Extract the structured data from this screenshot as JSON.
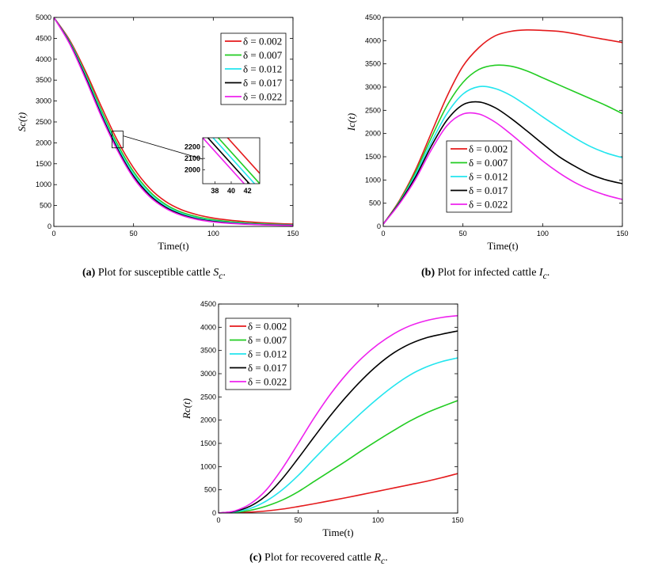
{
  "legend_entries": [
    "δ = 0.002",
    "δ = 0.007",
    "δ = 0.012",
    "δ = 0.017",
    "δ = 0.022"
  ],
  "series_colors": [
    "#e41a1c",
    "#22cc22",
    "#22e5ee",
    "#000000",
    "#ee22ee"
  ],
  "captions": {
    "a": {
      "tag": "(a)",
      "text": "Plot for susceptible cattle",
      "sym": "S",
      "sub": "c"
    },
    "b": {
      "tag": "(b)",
      "text": "Plot for infected cattle",
      "sym": "I",
      "sub": "c"
    },
    "c": {
      "tag": "(c)",
      "text": "Plot for recovered cattle",
      "sym": "R",
      "sub": "c"
    }
  },
  "chart_data": [
    {
      "id": "a",
      "type": "line",
      "xlabel": "Time(t)",
      "ylabel": "Sc(t)",
      "xlim": [
        0,
        150
      ],
      "ylim": [
        0,
        5000
      ],
      "xticks": [
        0,
        50,
        100,
        150
      ],
      "yticks": [
        0,
        500,
        1000,
        1500,
        2000,
        2500,
        3000,
        3500,
        4000,
        4500,
        5000
      ],
      "legend": "top-right",
      "x": [
        0,
        10,
        20,
        30,
        40,
        50,
        60,
        70,
        80,
        90,
        100,
        110,
        120,
        130,
        140,
        150
      ],
      "series": [
        {
          "name": "δ = 0.002",
          "values": [
            5000,
            4450,
            3700,
            2850,
            2050,
            1400,
            920,
            600,
            400,
            280,
            200,
            150,
            115,
            90,
            70,
            55
          ]
        },
        {
          "name": "δ = 0.007",
          "values": [
            5000,
            4420,
            3640,
            2760,
            1960,
            1310,
            840,
            530,
            340,
            230,
            160,
            115,
            85,
            65,
            50,
            40
          ]
        },
        {
          "name": "δ = 0.012",
          "values": [
            5000,
            4400,
            3600,
            2700,
            1900,
            1250,
            790,
            490,
            310,
            200,
            135,
            95,
            70,
            52,
            40,
            32
          ]
        },
        {
          "name": "δ = 0.017",
          "values": [
            5000,
            4380,
            3560,
            2650,
            1850,
            1200,
            750,
            460,
            285,
            180,
            120,
            82,
            60,
            45,
            34,
            27
          ]
        },
        {
          "name": "δ = 0.022",
          "values": [
            5000,
            4360,
            3520,
            2610,
            1810,
            1160,
            715,
            435,
            265,
            165,
            108,
            74,
            53,
            40,
            30,
            24
          ]
        }
      ],
      "inset": {
        "xlim": [
          36.5,
          43.5
        ],
        "ylim": [
          1880,
          2280
        ],
        "xticks": [
          38,
          40,
          42
        ],
        "yticks": [
          2000,
          2100,
          2200
        ],
        "lines": [
          {
            "x": [
              36.5,
              43.5
            ],
            "y": [
              2520,
              1970
            ]
          },
          {
            "x": [
              36.5,
              43.5
            ],
            "y": [
              2430,
              1880
            ]
          },
          {
            "x": [
              36.5,
              43.5
            ],
            "y": [
              2380,
              1830
            ]
          },
          {
            "x": [
              36.5,
              43.5
            ],
            "y": [
              2330,
              1780
            ]
          },
          {
            "x": [
              36.5,
              43.5
            ],
            "y": [
              2280,
              1730
            ]
          }
        ]
      }
    },
    {
      "id": "b",
      "type": "line",
      "xlabel": "Time(t)",
      "ylabel": "Ic(t)",
      "xlim": [
        0,
        150
      ],
      "ylim": [
        0,
        4500
      ],
      "xticks": [
        0,
        50,
        100,
        150
      ],
      "yticks": [
        0,
        500,
        1000,
        1500,
        2000,
        2500,
        3000,
        3500,
        4000,
        4500
      ],
      "legend": "bottom-left",
      "x": [
        0,
        10,
        20,
        30,
        40,
        50,
        60,
        70,
        80,
        90,
        100,
        110,
        120,
        130,
        140,
        150
      ],
      "series": [
        {
          "name": "δ = 0.002",
          "values": [
            50,
            550,
            1200,
            2000,
            2800,
            3450,
            3850,
            4100,
            4200,
            4230,
            4220,
            4200,
            4150,
            4080,
            4020,
            3960
          ]
        },
        {
          "name": "δ = 0.007",
          "values": [
            50,
            530,
            1150,
            1900,
            2600,
            3100,
            3380,
            3470,
            3450,
            3350,
            3200,
            3050,
            2900,
            2750,
            2600,
            2430
          ]
        },
        {
          "name": "δ = 0.012",
          "values": [
            50,
            510,
            1100,
            1800,
            2430,
            2850,
            3010,
            2970,
            2820,
            2600,
            2360,
            2130,
            1910,
            1720,
            1580,
            1480
          ]
        },
        {
          "name": "δ = 0.017",
          "values": [
            50,
            500,
            1050,
            1720,
            2290,
            2620,
            2680,
            2560,
            2330,
            2060,
            1780,
            1510,
            1300,
            1120,
            1000,
            920
          ]
        },
        {
          "name": "δ = 0.022",
          "values": [
            50,
            480,
            1000,
            1640,
            2170,
            2420,
            2420,
            2250,
            1990,
            1700,
            1410,
            1160,
            950,
            790,
            670,
            580
          ]
        }
      ]
    },
    {
      "id": "c",
      "type": "line",
      "xlabel": "Time(t)",
      "ylabel": "Rc(t)",
      "xlim": [
        0,
        150
      ],
      "ylim": [
        0,
        4500
      ],
      "xticks": [
        0,
        50,
        100,
        150
      ],
      "yticks": [
        0,
        500,
        1000,
        1500,
        2000,
        2500,
        3000,
        3500,
        4000,
        4500
      ],
      "legend": "top-left",
      "x": [
        0,
        10,
        20,
        30,
        40,
        50,
        60,
        70,
        80,
        90,
        100,
        110,
        120,
        130,
        140,
        150
      ],
      "series": [
        {
          "name": "δ = 0.002",
          "values": [
            0,
            5,
            20,
            45,
            85,
            140,
            200,
            265,
            330,
            400,
            470,
            540,
            610,
            680,
            760,
            850
          ]
        },
        {
          "name": "δ = 0.007",
          "values": [
            0,
            15,
            60,
            150,
            280,
            460,
            680,
            900,
            1120,
            1350,
            1570,
            1780,
            1980,
            2150,
            2290,
            2420
          ]
        },
        {
          "name": "δ = 0.012",
          "values": [
            0,
            25,
            100,
            260,
            500,
            810,
            1170,
            1520,
            1850,
            2170,
            2470,
            2740,
            2970,
            3140,
            3260,
            3340
          ]
        },
        {
          "name": "δ = 0.017",
          "values": [
            0,
            35,
            150,
            380,
            740,
            1180,
            1640,
            2090,
            2500,
            2870,
            3190,
            3450,
            3640,
            3770,
            3850,
            3920
          ]
        },
        {
          "name": "δ = 0.022",
          "values": [
            0,
            45,
            200,
            500,
            960,
            1500,
            2050,
            2550,
            2980,
            3340,
            3630,
            3860,
            4030,
            4140,
            4210,
            4250
          ]
        }
      ]
    }
  ]
}
